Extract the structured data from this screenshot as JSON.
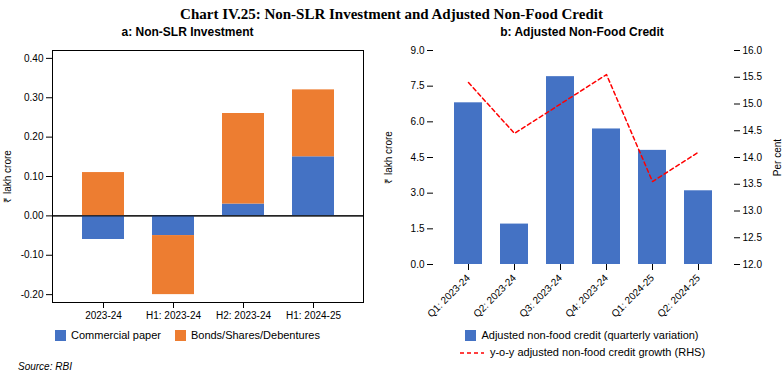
{
  "title": "Chart IV.25: Non-SLR Investment and Adjusted Non-Food Credit",
  "annotations": [
    "Source: RBI"
  ],
  "chart_data": [
    {
      "type": "bar",
      "title": "a: Non-SLR Investment",
      "categories": [
        "2023-24",
        "H1: 2023-24",
        "H2: 2023-24",
        "H1: 2024-25"
      ],
      "series": [
        {
          "name": "Commercial paper",
          "color": "#4472C4",
          "values": [
            -0.06,
            -0.05,
            0.03,
            0.15
          ]
        },
        {
          "name": "Bonds/Shares/Debentures",
          "color": "#ED7D31",
          "values": [
            0.11,
            -0.15,
            0.23,
            0.17
          ]
        }
      ],
      "stacked": true,
      "ylabel": "₹ lakh crore",
      "ylim": [
        -0.22,
        0.42
      ],
      "yticks": [
        {
          "value": -0.2,
          "label": "-0.20"
        },
        {
          "value": -0.1,
          "label": "-0.10"
        },
        {
          "value": 0,
          "label": "0.00"
        },
        {
          "value": 0.1,
          "label": "0.10"
        },
        {
          "value": 0.2,
          "label": "0.20"
        },
        {
          "value": 0.3,
          "label": "0.30"
        },
        {
          "value": 0.4,
          "label": "0.40"
        }
      ],
      "legend": "bottom"
    },
    {
      "type": "bar",
      "title": "b: Adjusted Non-Food Credit",
      "categories": [
        "Q1: 2023-24",
        "Q2: 2023-24",
        "Q3: 2023-24",
        "Q4: 2023-24",
        "Q1: 2024-25",
        "Q2: 2024-25"
      ],
      "series": [
        {
          "name": "Adjusted non-food credit (quarterly variation)",
          "type": "bar",
          "color": "#4472C4",
          "values": [
            6.8,
            1.7,
            7.9,
            5.7,
            4.8,
            3.1
          ]
        },
        {
          "name": "y-o-y adjusted non-food credit growth (RHS)",
          "type": "line",
          "axis": "y2",
          "color": "#FF0000",
          "line_style": "dashed",
          "values": [
            15.4,
            14.45,
            15.0,
            15.55,
            13.55,
            14.1
          ]
        }
      ],
      "ylabel": "₹ lakh crore",
      "y2label": "Per cent",
      "ylim": [
        0,
        9.0
      ],
      "yticks": [
        {
          "value": 0,
          "label": "0.0"
        },
        1.5,
        {
          "value": 3,
          "label": "3.0"
        },
        4.5,
        {
          "value": 6,
          "label": "6.0"
        },
        7.5,
        {
          "value": 9,
          "label": "9.0"
        }
      ],
      "y2lim": [
        12.0,
        16.0
      ],
      "y2ticks": [
        {
          "value": 12,
          "label": "12.0"
        },
        12.5,
        {
          "value": 13,
          "label": "13.0"
        },
        13.5,
        {
          "value": 14,
          "label": "14.0"
        },
        14.5,
        {
          "value": 15,
          "label": "15.0"
        },
        15.5,
        {
          "value": 16,
          "label": "16.0"
        }
      ],
      "legend": "bottom"
    }
  ]
}
